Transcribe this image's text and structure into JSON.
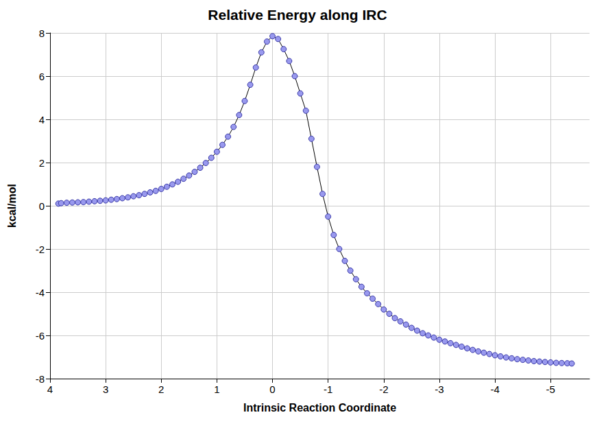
{
  "chart_data": {
    "type": "line",
    "title": "Relative Energy along IRC",
    "x_label": "Intrinsic Reaction Coordinate",
    "y_label": "kcal/mol",
    "x": [
      3.85,
      3.8,
      3.7,
      3.6,
      3.5,
      3.4,
      3.3,
      3.2,
      3.1,
      3.0,
      2.9,
      2.8,
      2.7,
      2.6,
      2.5,
      2.4,
      2.3,
      2.2,
      2.1,
      2.0,
      1.9,
      1.8,
      1.7,
      1.6,
      1.5,
      1.4,
      1.3,
      1.2,
      1.1,
      1.0,
      0.9,
      0.8,
      0.7,
      0.6,
      0.5,
      0.4,
      0.3,
      0.2,
      0.1,
      0.0,
      -0.1,
      -0.2,
      -0.3,
      -0.4,
      -0.5,
      -0.6,
      -0.7,
      -0.8,
      -0.9,
      -1.0,
      -1.1,
      -1.2,
      -1.3,
      -1.4,
      -1.5,
      -1.6,
      -1.7,
      -1.8,
      -1.9,
      -2.0,
      -2.1,
      -2.2,
      -2.3,
      -2.4,
      -2.5,
      -2.6,
      -2.7,
      -2.8,
      -2.9,
      -3.0,
      -3.1,
      -3.2,
      -3.3,
      -3.4,
      -3.5,
      -3.6,
      -3.7,
      -3.8,
      -3.9,
      -4.0,
      -4.1,
      -4.2,
      -4.3,
      -4.4,
      -4.5,
      -4.6,
      -4.7,
      -4.8,
      -4.9,
      -5.0,
      -5.1,
      -5.2,
      -5.3,
      -5.38
    ],
    "series": [
      {
        "name": "Relative Energy",
        "color": "#9999ee",
        "marker": "circle",
        "line_style": "solid",
        "values": [
          0.1,
          0.12,
          0.14,
          0.15,
          0.16,
          0.17,
          0.19,
          0.21,
          0.23,
          0.25,
          0.28,
          0.31,
          0.35,
          0.39,
          0.44,
          0.49,
          0.55,
          0.62,
          0.69,
          0.78,
          0.88,
          0.99,
          1.11,
          1.25,
          1.4,
          1.57,
          1.76,
          1.98,
          2.22,
          2.5,
          2.82,
          3.2,
          3.65,
          4.2,
          4.85,
          5.6,
          6.4,
          7.1,
          7.6,
          7.85,
          7.72,
          7.25,
          6.7,
          6.0,
          5.2,
          4.4,
          3.1,
          1.8,
          0.55,
          -0.5,
          -1.35,
          -2.0,
          -2.55,
          -3.0,
          -3.4,
          -3.75,
          -4.05,
          -4.3,
          -4.55,
          -4.8,
          -5.0,
          -5.2,
          -5.35,
          -5.5,
          -5.65,
          -5.78,
          -5.9,
          -6.0,
          -6.1,
          -6.2,
          -6.28,
          -6.36,
          -6.44,
          -6.52,
          -6.6,
          -6.67,
          -6.74,
          -6.8,
          -6.86,
          -6.92,
          -6.97,
          -7.02,
          -7.06,
          -7.1,
          -7.13,
          -7.16,
          -7.19,
          -7.21,
          -7.23,
          -7.25,
          -7.27,
          -7.28,
          -7.29,
          -7.3
        ]
      }
    ],
    "xlim": [
      4,
      -5.7
    ],
    "xticks": [
      4,
      3,
      2,
      1,
      0,
      -1,
      -2,
      -3,
      -4,
      -5
    ],
    "ylim": [
      -8,
      8
    ],
    "yticks": [
      -8,
      -6,
      -4,
      -2,
      0,
      2,
      4,
      6,
      8
    ],
    "grid": true
  }
}
